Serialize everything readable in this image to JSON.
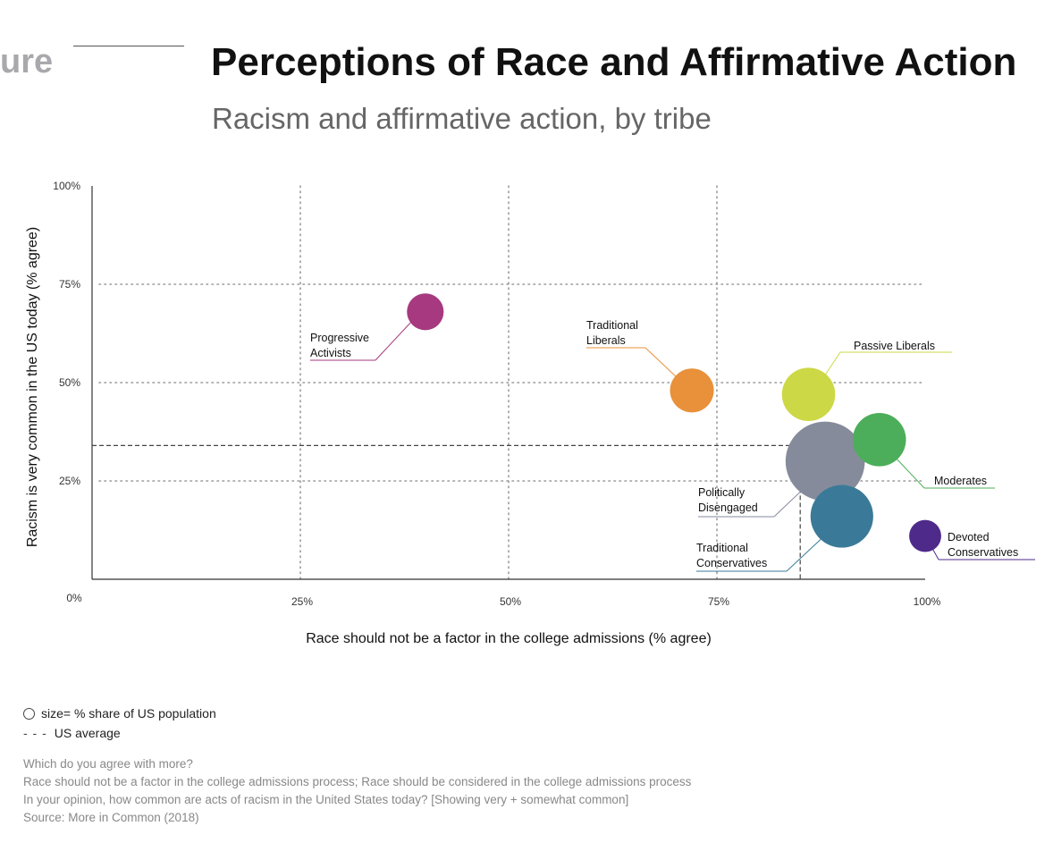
{
  "header": {
    "fragment": "ure",
    "title": "Perceptions of Race and Affirmative Action",
    "subtitle": "Racism and affirmative action, by tribe"
  },
  "chart_data": {
    "type": "scatter",
    "title": "Perceptions of Race and Affirmative Action",
    "subtitle": "Racism and affirmative action, by tribe",
    "xlabel": "Race should not be a factor in the college admissions (% agree)",
    "ylabel": "Racism is very common in the US today (% agree)",
    "xlim": [
      0,
      100
    ],
    "ylim": [
      0,
      100
    ],
    "x_ticks": [
      {
        "value": 0,
        "label": "0%"
      },
      {
        "value": 25,
        "label": "25%"
      },
      {
        "value": 50,
        "label": "50%"
      },
      {
        "value": 75,
        "label": "75%"
      },
      {
        "value": 100,
        "label": "100%"
      }
    ],
    "y_ticks": [
      {
        "value": 25,
        "label": "25%"
      },
      {
        "value": 50,
        "label": "50%"
      },
      {
        "value": 75,
        "label": "75%"
      },
      {
        "value": 100,
        "label": "100%"
      }
    ],
    "grid": true,
    "reference": {
      "x": 85,
      "y": 34
    },
    "bubble_size_meaning": "% share of US population",
    "points": [
      {
        "name": "Progressive Activists",
        "label_lines": [
          "Progressive",
          "Activists"
        ],
        "x": 40,
        "y": 68,
        "size": 8,
        "color": "#a6397f"
      },
      {
        "name": "Traditional Liberals",
        "label_lines": [
          "Traditional",
          "Liberals"
        ],
        "x": 72,
        "y": 48,
        "size": 11,
        "color": "#e8913a"
      },
      {
        "name": "Passive Liberals",
        "label_lines": [
          "Passive Liberals"
        ],
        "x": 86,
        "y": 47,
        "size": 15,
        "color": "#cdd846"
      },
      {
        "name": "Politically Disengaged",
        "label_lines": [
          "Politically",
          "Disengaged"
        ],
        "x": 88,
        "y": 30,
        "size": 26,
        "color": "#868b9b"
      },
      {
        "name": "Moderates",
        "label_lines": [
          "Moderates"
        ],
        "x": 94.5,
        "y": 35.5,
        "size": 15,
        "color": "#4cae5a"
      },
      {
        "name": "Traditional Conservatives",
        "label_lines": [
          "Traditional",
          "Conservatives"
        ],
        "x": 90,
        "y": 16,
        "size": 19,
        "color": "#3a7a98"
      },
      {
        "name": "Devoted Conservatives",
        "label_lines": [
          "Devoted",
          "Conservatives"
        ],
        "x": 100,
        "y": 11,
        "size": 6,
        "color": "#4e2a8a"
      }
    ]
  },
  "legend": {
    "size_text": "size= % share of US population",
    "dash_symbol": "- - -",
    "average_text": "US average"
  },
  "notes": {
    "line1": "Which do you agree with more?",
    "line2": "Race should not be a factor in the college admissions process; Race should be considered in the college admissions process",
    "line3": "In your opinion, how common are acts of racism in the United States today? [Showing very + somewhat common]",
    "line4": "Source: More in Common (2018)"
  }
}
